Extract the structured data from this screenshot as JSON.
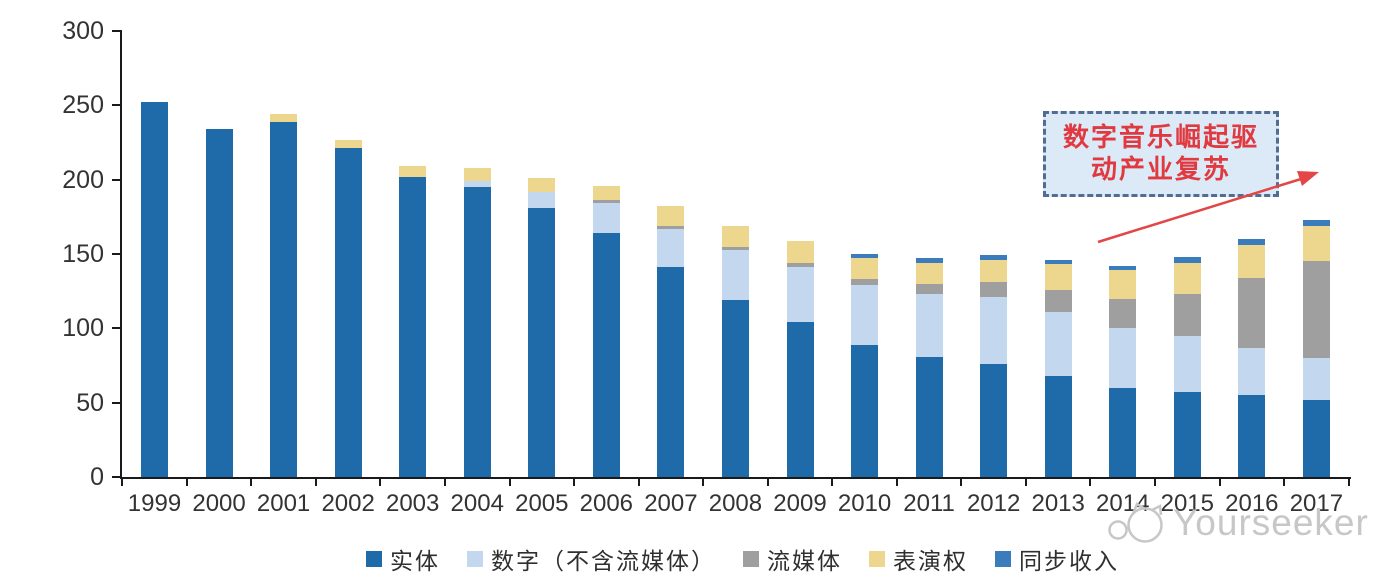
{
  "chart_data": {
    "type": "bar",
    "stacked": true,
    "categories": [
      "1999",
      "2000",
      "2001",
      "2002",
      "2003",
      "2004",
      "2005",
      "2006",
      "2007",
      "2008",
      "2009",
      "2010",
      "2011",
      "2012",
      "2013",
      "2014",
      "2015",
      "2016",
      "2017"
    ],
    "series": [
      {
        "name": "实体",
        "color": "#1f6aa9",
        "values": [
          252,
          234,
          239,
          221,
          202,
          195,
          181,
          164,
          141,
          119,
          104,
          89,
          81,
          76,
          68,
          60,
          57,
          55,
          52
        ]
      },
      {
        "name": "数字（不含流媒体）",
        "color": "#c3d8ef",
        "values": [
          0,
          0,
          0,
          0,
          0,
          4,
          11,
          20,
          26,
          34,
          37,
          40,
          42,
          45,
          43,
          40,
          38,
          32,
          28
        ]
      },
      {
        "name": "流媒体",
        "color": "#9f9f9f",
        "values": [
          0,
          0,
          0,
          0,
          0,
          0,
          0,
          2,
          2,
          2,
          3,
          4,
          7,
          10,
          15,
          20,
          28,
          47,
          65
        ]
      },
      {
        "name": "表演权",
        "color": "#edd68d",
        "values": [
          0,
          0,
          5,
          6,
          7,
          9,
          9,
          10,
          13,
          14,
          15,
          14,
          14,
          15,
          17,
          19,
          21,
          22,
          24
        ]
      },
      {
        "name": "同步收入",
        "color": "#3b7cbc",
        "values": [
          0,
          0,
          0,
          0,
          0,
          0,
          0,
          0,
          0,
          0,
          0,
          3,
          3,
          3,
          3,
          3,
          4,
          4,
          4
        ]
      }
    ],
    "ylim": [
      0,
      300
    ],
    "yticks": [
      "0",
      "50",
      "100",
      "150",
      "200",
      "250",
      "300"
    ],
    "grid": false,
    "legend_position": "bottom"
  },
  "annotation": {
    "line1": "数字音乐崛起驱",
    "line2": "动产业复苏",
    "text_color": "#e03a40",
    "box_fill": "#dce9f7",
    "box_border": "#526d92",
    "arrow_color": "#e24646"
  },
  "watermark": {
    "text": "Yourseeker",
    "color": "#c7c7c7"
  }
}
